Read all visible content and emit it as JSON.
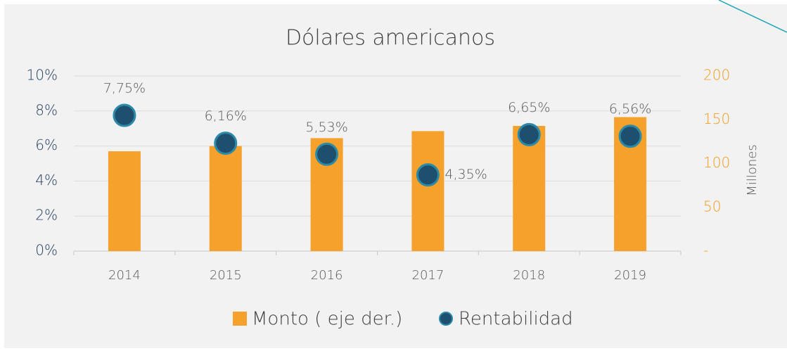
{
  "chart_data": {
    "type": "bar-dot",
    "title": "Dólares americanos",
    "y2_label": "Millones",
    "categories": [
      "2014",
      "2015",
      "2016",
      "2017",
      "2018",
      "2019"
    ],
    "series": [
      {
        "name": "Monto ( eje der.)",
        "color": "#f5a12b",
        "axis": "y2",
        "values": [
          114,
          120,
          129,
          137,
          143,
          153
        ]
      },
      {
        "name": "Rentabilidad",
        "color": "#1e4f6e",
        "axis": "y",
        "values": [
          7.75,
          6.16,
          5.53,
          4.35,
          6.65,
          6.56
        ],
        "value_labels": [
          "7,75%",
          "6,16%",
          "5,53%",
          "4,35%",
          "6,65%",
          "6,56%"
        ]
      }
    ],
    "ylim": [
      0,
      10
    ],
    "yticks": [
      {
        "value": 0,
        "label": "0%"
      },
      {
        "value": 2,
        "label": "2%"
      },
      {
        "value": 4,
        "label": "4%"
      },
      {
        "value": 6,
        "label": "6%"
      },
      {
        "value": 8,
        "label": "8%"
      },
      {
        "value": 10,
        "label": "10%"
      }
    ],
    "y2lim": [
      0,
      200
    ],
    "y2ticks": [
      {
        "value": 0,
        "label": "-"
      },
      50,
      100,
      150,
      200
    ],
    "grid": true
  }
}
